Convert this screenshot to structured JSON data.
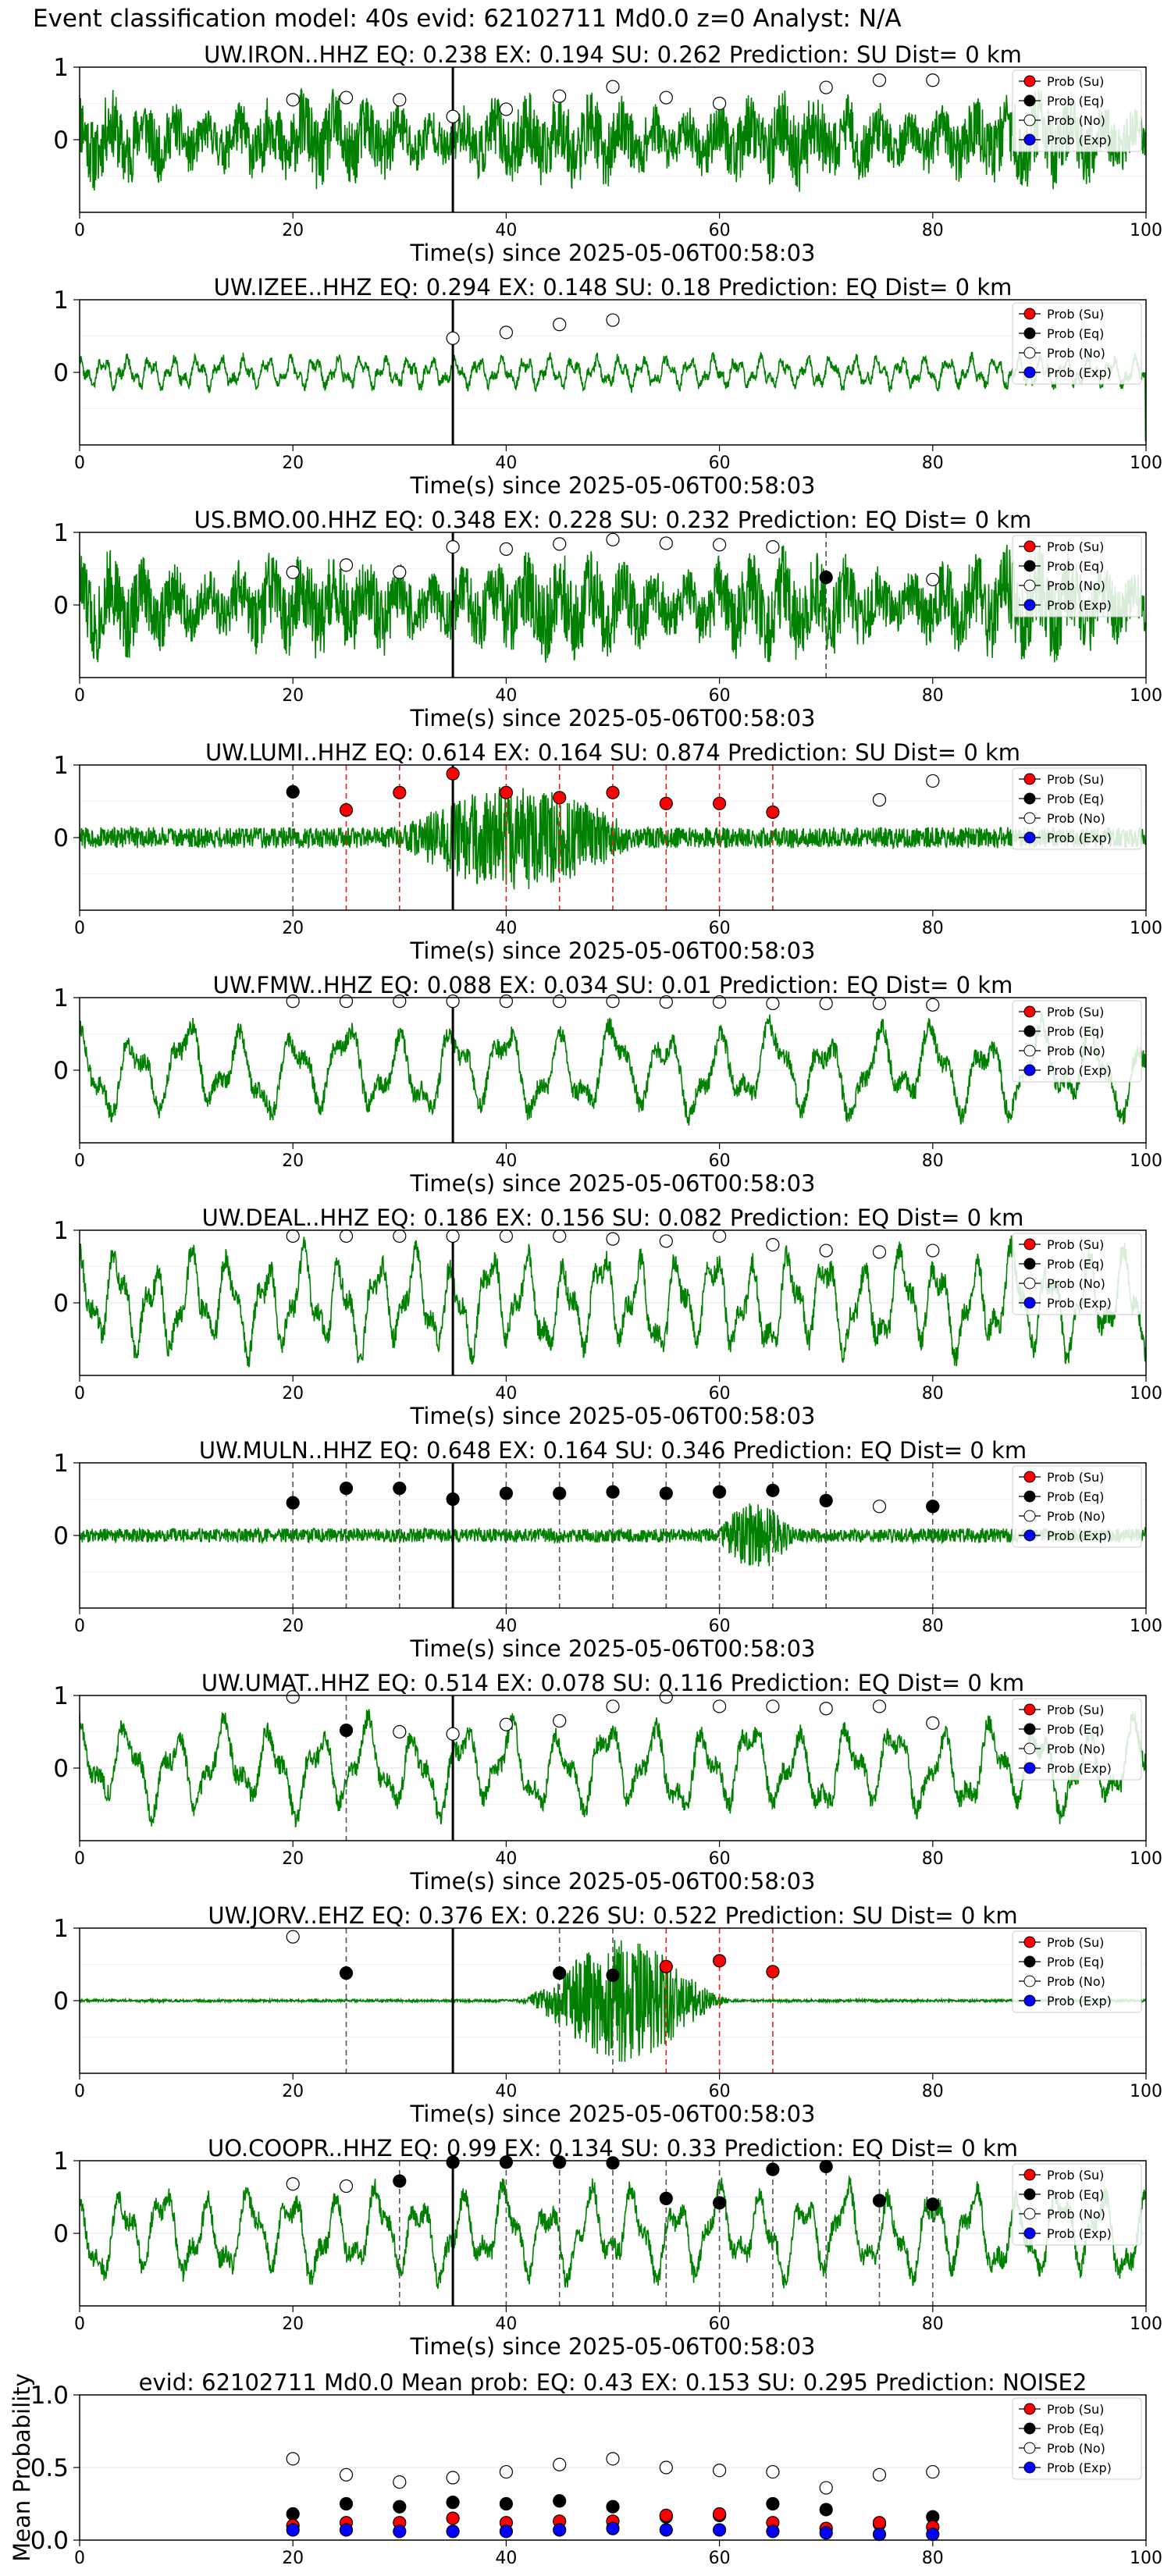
{
  "figure": {
    "title": "Event classification model: 40s evid: 62102711 Md0.0 z=0 Analyst: N/A"
  },
  "legend_labels": [
    "Prob (Su)",
    "Prob (Eq)",
    "Prob (No)",
    "Prob (Exp)"
  ],
  "colors": {
    "waveform": "#008000",
    "su": "#ff0000",
    "eq": "#000000",
    "noise": "#ffffff",
    "exp": "#0000ff",
    "grid": "#e6e6e6",
    "eq_line": "#555555",
    "su_line": "#e02020"
  },
  "chart_data": [
    {
      "type": "line",
      "title": "UW.IRON..HHZ   EQ: 0.238  EX: 0.194  SU: 0.262   Prediction: SU    Dist= 0 km",
      "xlabel": "Time(s) since 2025-05-06T00:58:03",
      "xlim": [
        0,
        100
      ],
      "ylim": [
        -1,
        1
      ],
      "xticks": [
        0,
        20,
        40,
        60,
        80,
        100
      ],
      "yticks": [
        0,
        1
      ],
      "grid": true,
      "legend_position": "top-right",
      "pick_time": 35,
      "waveform": {
        "seed": 11,
        "style": "noisy",
        "amplitude": 0.7
      },
      "noise_points": [
        [
          20,
          0.55
        ],
        [
          25,
          0.58
        ],
        [
          30,
          0.55
        ],
        [
          35,
          0.32
        ],
        [
          40,
          0.42
        ],
        [
          45,
          0.6
        ],
        [
          50,
          0.73
        ],
        [
          55,
          0.58
        ],
        [
          60,
          0.5
        ],
        [
          70,
          0.72
        ],
        [
          75,
          0.82
        ],
        [
          80,
          0.82
        ]
      ],
      "eq_points": [],
      "su_points": [],
      "eq_lines": [],
      "su_lines": []
    },
    {
      "type": "line",
      "title": "UW.IZEE..HHZ   EQ: 0.294  EX: 0.148  SU: 0.18   Prediction: EQ    Dist= 0 km",
      "xlabel": "Time(s) since 2025-05-06T00:58:03",
      "xlim": [
        0,
        100
      ],
      "ylim": [
        -1,
        1
      ],
      "xticks": [
        0,
        20,
        40,
        60,
        80,
        100
      ],
      "yticks": [
        0,
        1
      ],
      "grid": true,
      "legend_position": "top-right",
      "pick_time": 35,
      "waveform": {
        "seed": 22,
        "style": "quiet",
        "amplitude": 0.45
      },
      "noise_points": [
        [
          35,
          0.47
        ],
        [
          40,
          0.55
        ],
        [
          45,
          0.66
        ],
        [
          50,
          0.72
        ]
      ],
      "eq_points": [],
      "su_points": [],
      "eq_lines": [],
      "su_lines": []
    },
    {
      "type": "line",
      "title": "US.BMO.00.HHZ   EQ: 0.348  EX: 0.228  SU: 0.232   Prediction: EQ    Dist= 0 km",
      "xlabel": "Time(s) since 2025-05-06T00:58:03",
      "xlim": [
        0,
        100
      ],
      "ylim": [
        -1,
        1
      ],
      "xticks": [
        0,
        20,
        40,
        60,
        80,
        100
      ],
      "yticks": [
        0,
        1
      ],
      "grid": true,
      "legend_position": "top-right",
      "pick_time": 35,
      "waveform": {
        "seed": 33,
        "style": "noisy",
        "amplitude": 0.8
      },
      "noise_points": [
        [
          20,
          0.45
        ],
        [
          25,
          0.55
        ],
        [
          30,
          0.45
        ],
        [
          35,
          0.8
        ],
        [
          40,
          0.77
        ],
        [
          45,
          0.84
        ],
        [
          50,
          0.9
        ],
        [
          55,
          0.85
        ],
        [
          60,
          0.83
        ],
        [
          65,
          0.8
        ],
        [
          80,
          0.35
        ]
      ],
      "eq_points": [
        [
          70,
          0.38
        ]
      ],
      "su_points": [],
      "eq_lines": [
        70
      ],
      "su_lines": []
    },
    {
      "type": "line",
      "title": "UW.LUMI..HHZ   EQ: 0.614  EX: 0.164  SU: 0.874   Prediction: SU    Dist= 0 km",
      "xlabel": "Time(s) since 2025-05-06T00:58:03",
      "xlim": [
        0,
        100
      ],
      "ylim": [
        -1,
        1
      ],
      "xticks": [
        0,
        20,
        40,
        60,
        80,
        100
      ],
      "yticks": [
        0,
        1
      ],
      "grid": true,
      "legend_position": "top-right",
      "pick_time": 35,
      "waveform": {
        "seed": 44,
        "style": "burst",
        "amplitude": 0.9,
        "burst_start": 30,
        "burst_end": 52
      },
      "noise_points": [
        [
          75,
          0.52
        ],
        [
          80,
          0.78
        ]
      ],
      "eq_points": [
        [
          20,
          0.63
        ]
      ],
      "su_points": [
        [
          25,
          0.38
        ],
        [
          30,
          0.62
        ],
        [
          35,
          0.88
        ],
        [
          40,
          0.62
        ],
        [
          45,
          0.55
        ],
        [
          50,
          0.62
        ],
        [
          55,
          0.47
        ],
        [
          60,
          0.47
        ],
        [
          65,
          0.35
        ]
      ],
      "eq_lines": [
        20
      ],
      "su_lines": [
        25,
        30,
        40,
        45,
        50,
        55,
        60,
        65
      ]
    },
    {
      "type": "line",
      "title": "UW.FMW..HHZ   EQ: 0.088  EX: 0.034  SU: 0.01   Prediction: EQ    Dist= 0 km",
      "xlabel": "Time(s) since 2025-05-06T00:58:03",
      "xlim": [
        0,
        100
      ],
      "ylim": [
        -1,
        1
      ],
      "xticks": [
        0,
        20,
        40,
        60,
        80,
        100
      ],
      "yticks": [
        0,
        1
      ],
      "grid": true,
      "legend_position": "top-right",
      "pick_time": 35,
      "waveform": {
        "seed": 55,
        "style": "wave",
        "amplitude": 0.75,
        "period": 5
      },
      "noise_points": [
        [
          20,
          0.95
        ],
        [
          25,
          0.95
        ],
        [
          30,
          0.95
        ],
        [
          35,
          0.95
        ],
        [
          40,
          0.95
        ],
        [
          45,
          0.95
        ],
        [
          50,
          0.95
        ],
        [
          55,
          0.94
        ],
        [
          60,
          0.94
        ],
        [
          65,
          0.92
        ],
        [
          70,
          0.92
        ],
        [
          75,
          0.92
        ],
        [
          80,
          0.9
        ]
      ],
      "eq_points": [],
      "su_points": [],
      "eq_lines": [],
      "su_lines": []
    },
    {
      "type": "line",
      "title": "UW.DEAL..HHZ   EQ: 0.186  EX: 0.156  SU: 0.082   Prediction: EQ    Dist= 0 km",
      "xlabel": "Time(s) since 2025-05-06T00:58:03",
      "xlim": [
        0,
        100
      ],
      "ylim": [
        -1,
        1
      ],
      "xticks": [
        0,
        20,
        40,
        60,
        80,
        100
      ],
      "yticks": [
        0,
        1
      ],
      "grid": true,
      "legend_position": "top-right",
      "pick_time": 35,
      "waveform": {
        "seed": 66,
        "style": "wave",
        "amplitude": 0.85,
        "period": 3.5
      },
      "noise_points": [
        [
          20,
          0.92
        ],
        [
          25,
          0.92
        ],
        [
          30,
          0.92
        ],
        [
          35,
          0.92
        ],
        [
          40,
          0.92
        ],
        [
          45,
          0.92
        ],
        [
          50,
          0.88
        ],
        [
          55,
          0.85
        ],
        [
          60,
          0.92
        ],
        [
          65,
          0.8
        ],
        [
          70,
          0.72
        ],
        [
          75,
          0.7
        ],
        [
          80,
          0.72
        ]
      ],
      "eq_points": [],
      "su_points": [],
      "eq_lines": [],
      "su_lines": []
    },
    {
      "type": "line",
      "title": "UW.MULN..HHZ   EQ: 0.648  EX: 0.164  SU: 0.346   Prediction: EQ    Dist= 0 km",
      "xlabel": "Time(s) since 2025-05-06T00:58:03",
      "xlim": [
        0,
        100
      ],
      "ylim": [
        -1,
        1
      ],
      "xticks": [
        0,
        20,
        40,
        60,
        80,
        100
      ],
      "yticks": [
        0,
        1
      ],
      "grid": true,
      "legend_position": "top-right",
      "pick_time": 35,
      "waveform": {
        "seed": 77,
        "style": "burst",
        "amplitude": 0.6,
        "burst_start": 60,
        "burst_end": 67
      },
      "noise_points": [
        [
          75,
          0.4
        ],
        [
          80,
          0.4
        ]
      ],
      "eq_points": [
        [
          20,
          0.45
        ],
        [
          25,
          0.65
        ],
        [
          30,
          0.65
        ],
        [
          35,
          0.5
        ],
        [
          40,
          0.58
        ],
        [
          45,
          0.58
        ],
        [
          50,
          0.6
        ],
        [
          55,
          0.58
        ],
        [
          60,
          0.6
        ],
        [
          65,
          0.62
        ],
        [
          70,
          0.48
        ],
        [
          80,
          0.4
        ]
      ],
      "su_points": [],
      "eq_lines": [
        20,
        25,
        30,
        40,
        45,
        50,
        55,
        60,
        65,
        70,
        80
      ],
      "su_lines": []
    },
    {
      "type": "line",
      "title": "UW.UMAT..HHZ   EQ: 0.514  EX: 0.078  SU: 0.116   Prediction: EQ    Dist= 0 km",
      "xlabel": "Time(s) since 2025-05-06T00:58:03",
      "xlim": [
        0,
        100
      ],
      "ylim": [
        -1,
        1
      ],
      "xticks": [
        0,
        20,
        40,
        60,
        80,
        100
      ],
      "yticks": [
        0,
        1
      ],
      "grid": true,
      "legend_position": "top-right",
      "pick_time": 35,
      "waveform": {
        "seed": 88,
        "style": "wave",
        "amplitude": 0.75,
        "period": 4.5
      },
      "noise_points": [
        [
          20,
          0.98
        ],
        [
          30,
          0.5
        ],
        [
          35,
          0.47
        ],
        [
          40,
          0.6
        ],
        [
          45,
          0.65
        ],
        [
          50,
          0.85
        ],
        [
          55,
          0.98
        ],
        [
          60,
          0.85
        ],
        [
          65,
          0.85
        ],
        [
          70,
          0.82
        ],
        [
          75,
          0.85
        ],
        [
          80,
          0.62
        ]
      ],
      "eq_points": [
        [
          25,
          0.52
        ]
      ],
      "su_points": [],
      "eq_lines": [
        25
      ],
      "su_lines": []
    },
    {
      "type": "line",
      "title": "UW.JORV..EHZ   EQ: 0.376  EX: 0.226  SU: 0.522   Prediction: SU    Dist= 0 km",
      "xlabel": "Time(s) since 2025-05-06T00:58:03",
      "xlim": [
        0,
        100
      ],
      "ylim": [
        -1,
        1
      ],
      "xticks": [
        0,
        20,
        40,
        60,
        80,
        100
      ],
      "yticks": [
        0,
        1
      ],
      "grid": true,
      "legend_position": "top-right",
      "pick_time": 35,
      "waveform": {
        "seed": 99,
        "style": "spindle",
        "amplitude": 0.95,
        "burst_start": 40,
        "burst_end": 62,
        "quiet_level": 0.02
      },
      "noise_points": [
        [
          20,
          0.88
        ]
      ],
      "eq_points": [
        [
          25,
          0.38
        ],
        [
          45,
          0.38
        ],
        [
          50,
          0.35
        ]
      ],
      "su_points": [
        [
          55,
          0.47
        ],
        [
          60,
          0.55
        ],
        [
          65,
          0.4
        ]
      ],
      "eq_lines": [
        25,
        45,
        50
      ],
      "su_lines": [
        55,
        60,
        65
      ]
    },
    {
      "type": "line",
      "title": "UO.COOPR..HHZ   EQ: 0.99  EX: 0.134  SU: 0.33   Prediction: EQ    Dist= 0 km",
      "xlabel": "Time(s) since 2025-05-06T00:58:03",
      "xlim": [
        0,
        100
      ],
      "ylim": [
        -1,
        1
      ],
      "xticks": [
        0,
        20,
        40,
        60,
        80,
        100
      ],
      "yticks": [
        0,
        1
      ],
      "grid": true,
      "legend_position": "top-right",
      "pick_time": 35,
      "waveform": {
        "seed": 121,
        "style": "wave",
        "amplitude": 0.75,
        "period": 4
      },
      "noise_points": [
        [
          20,
          0.68
        ],
        [
          25,
          0.65
        ]
      ],
      "eq_points": [
        [
          30,
          0.72
        ],
        [
          35,
          0.98
        ],
        [
          40,
          0.98
        ],
        [
          45,
          0.98
        ],
        [
          50,
          0.97
        ],
        [
          55,
          0.48
        ],
        [
          60,
          0.42
        ],
        [
          65,
          0.88
        ],
        [
          70,
          0.92
        ],
        [
          75,
          0.45
        ],
        [
          80,
          0.4
        ]
      ],
      "su_points": [],
      "eq_lines": [
        30,
        40,
        45,
        50,
        55,
        60,
        65,
        70,
        75,
        80
      ],
      "su_lines": []
    },
    {
      "type": "scatter",
      "title": "evid: 62102711  Md0.0   Mean prob:   EQ: 0.43  EX: 0.153  SU: 0.295   Prediction: NOISE2",
      "xlabel": "",
      "ylabel": "Mean Probability",
      "xlim": [
        0,
        100
      ],
      "ylim": [
        0,
        1
      ],
      "xticks": [
        0,
        20,
        40,
        60,
        80,
        100
      ],
      "yticks": [
        0.0,
        0.5,
        1.0
      ],
      "ytick_labels": [
        "0.0",
        "0.5",
        "1.0"
      ],
      "grid": true,
      "legend_position": "top-right",
      "x": [
        20,
        25,
        30,
        35,
        40,
        45,
        50,
        55,
        60,
        65,
        70,
        75,
        80
      ],
      "series": [
        {
          "name": "Prob (No)",
          "key": "noise",
          "values": [
            0.56,
            0.45,
            0.4,
            0.43,
            0.47,
            0.52,
            0.56,
            0.5,
            0.48,
            0.47,
            0.36,
            0.45,
            0.47
          ]
        },
        {
          "name": "Prob (Eq)",
          "key": "eq",
          "values": [
            0.18,
            0.25,
            0.23,
            0.26,
            0.25,
            0.27,
            0.23,
            0.16,
            0.17,
            0.25,
            0.21,
            0.11,
            0.16
          ]
        },
        {
          "name": "Prob (Su)",
          "key": "su",
          "values": [
            0.1,
            0.12,
            0.12,
            0.15,
            0.12,
            0.13,
            0.13,
            0.17,
            0.18,
            0.12,
            0.08,
            0.12,
            0.09
          ]
        },
        {
          "name": "Prob (Exp)",
          "key": "exp",
          "values": [
            0.07,
            0.07,
            0.06,
            0.06,
            0.06,
            0.07,
            0.08,
            0.07,
            0.07,
            0.06,
            0.05,
            0.04,
            0.04
          ]
        }
      ]
    }
  ]
}
